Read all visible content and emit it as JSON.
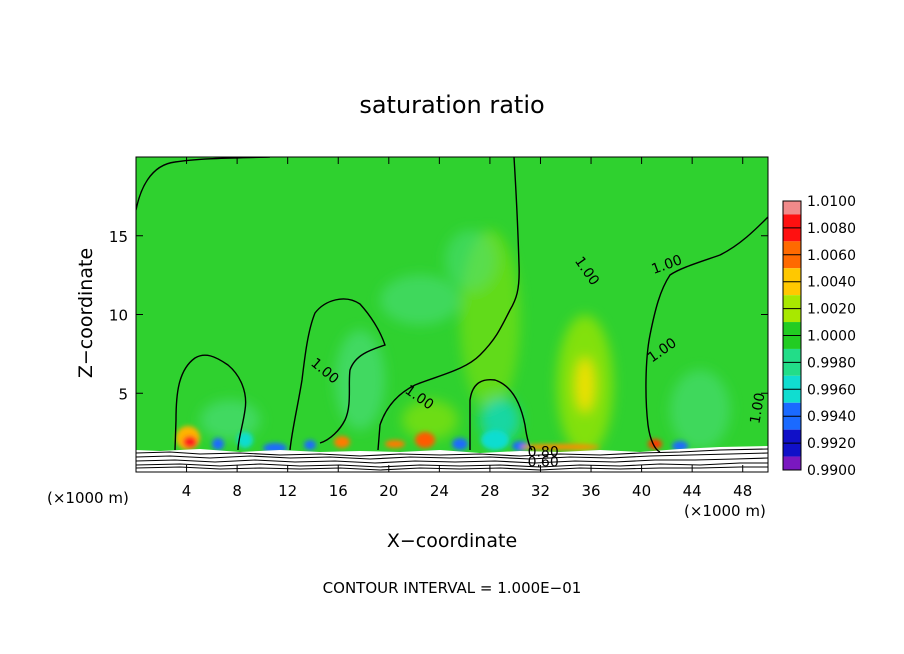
{
  "chart_data": {
    "type": "heatmap",
    "title": "saturation ratio",
    "xlabel": "X−coordinate",
    "ylabel": "Z−coordinate",
    "x_unit_left": "(×1000 m)",
    "x_unit_right": "(×1000 m)",
    "xlim": [
      0,
      50
    ],
    "ylim": [
      0,
      20
    ],
    "x_ticks": [
      4,
      8,
      12,
      16,
      20,
      24,
      28,
      32,
      36,
      40,
      44,
      48
    ],
    "y_ticks": [
      5,
      10,
      15
    ],
    "footer": "CONTOUR INTERVAL = 1.000E−01",
    "colorbar": {
      "levels": [
        "1.0100",
        "1.0080",
        "1.0060",
        "1.0040",
        "1.0020",
        "1.0000",
        "0.9980",
        "0.9960",
        "0.9940",
        "0.9920",
        "0.9900"
      ],
      "colors": [
        "#f08a8a",
        "#ff1010",
        "#ff6a00",
        "#ffc800",
        "#a8e800",
        "#22cc22",
        "#22dd88",
        "#10ddd0",
        "#1a6aff",
        "#1010c8",
        "#7a18c0"
      ]
    },
    "contour_labels": [
      {
        "text": "1.00",
        "x": 36.8,
        "y": 12.6,
        "rot": 55
      },
      {
        "text": "1.00",
        "x": 15.3,
        "y": 6.2,
        "rot": 40
      },
      {
        "text": "1.00",
        "x": 43.8,
        "y": 12.9,
        "rot": -20
      },
      {
        "text": "1.00",
        "x": 43.5,
        "y": 7.5,
        "rot": -35
      },
      {
        "text": "1.00",
        "x": 23.1,
        "y": 4.5,
        "rot": 35
      },
      {
        "text": "1.00",
        "x": 51.5,
        "y": 4.0,
        "rot": -80
      },
      {
        "text": "0.80",
        "x": 33.5,
        "y": 1.0,
        "rot": 0
      },
      {
        "text": "0.60",
        "x": 33.5,
        "y": 0.35,
        "rot": 0
      }
    ]
  }
}
